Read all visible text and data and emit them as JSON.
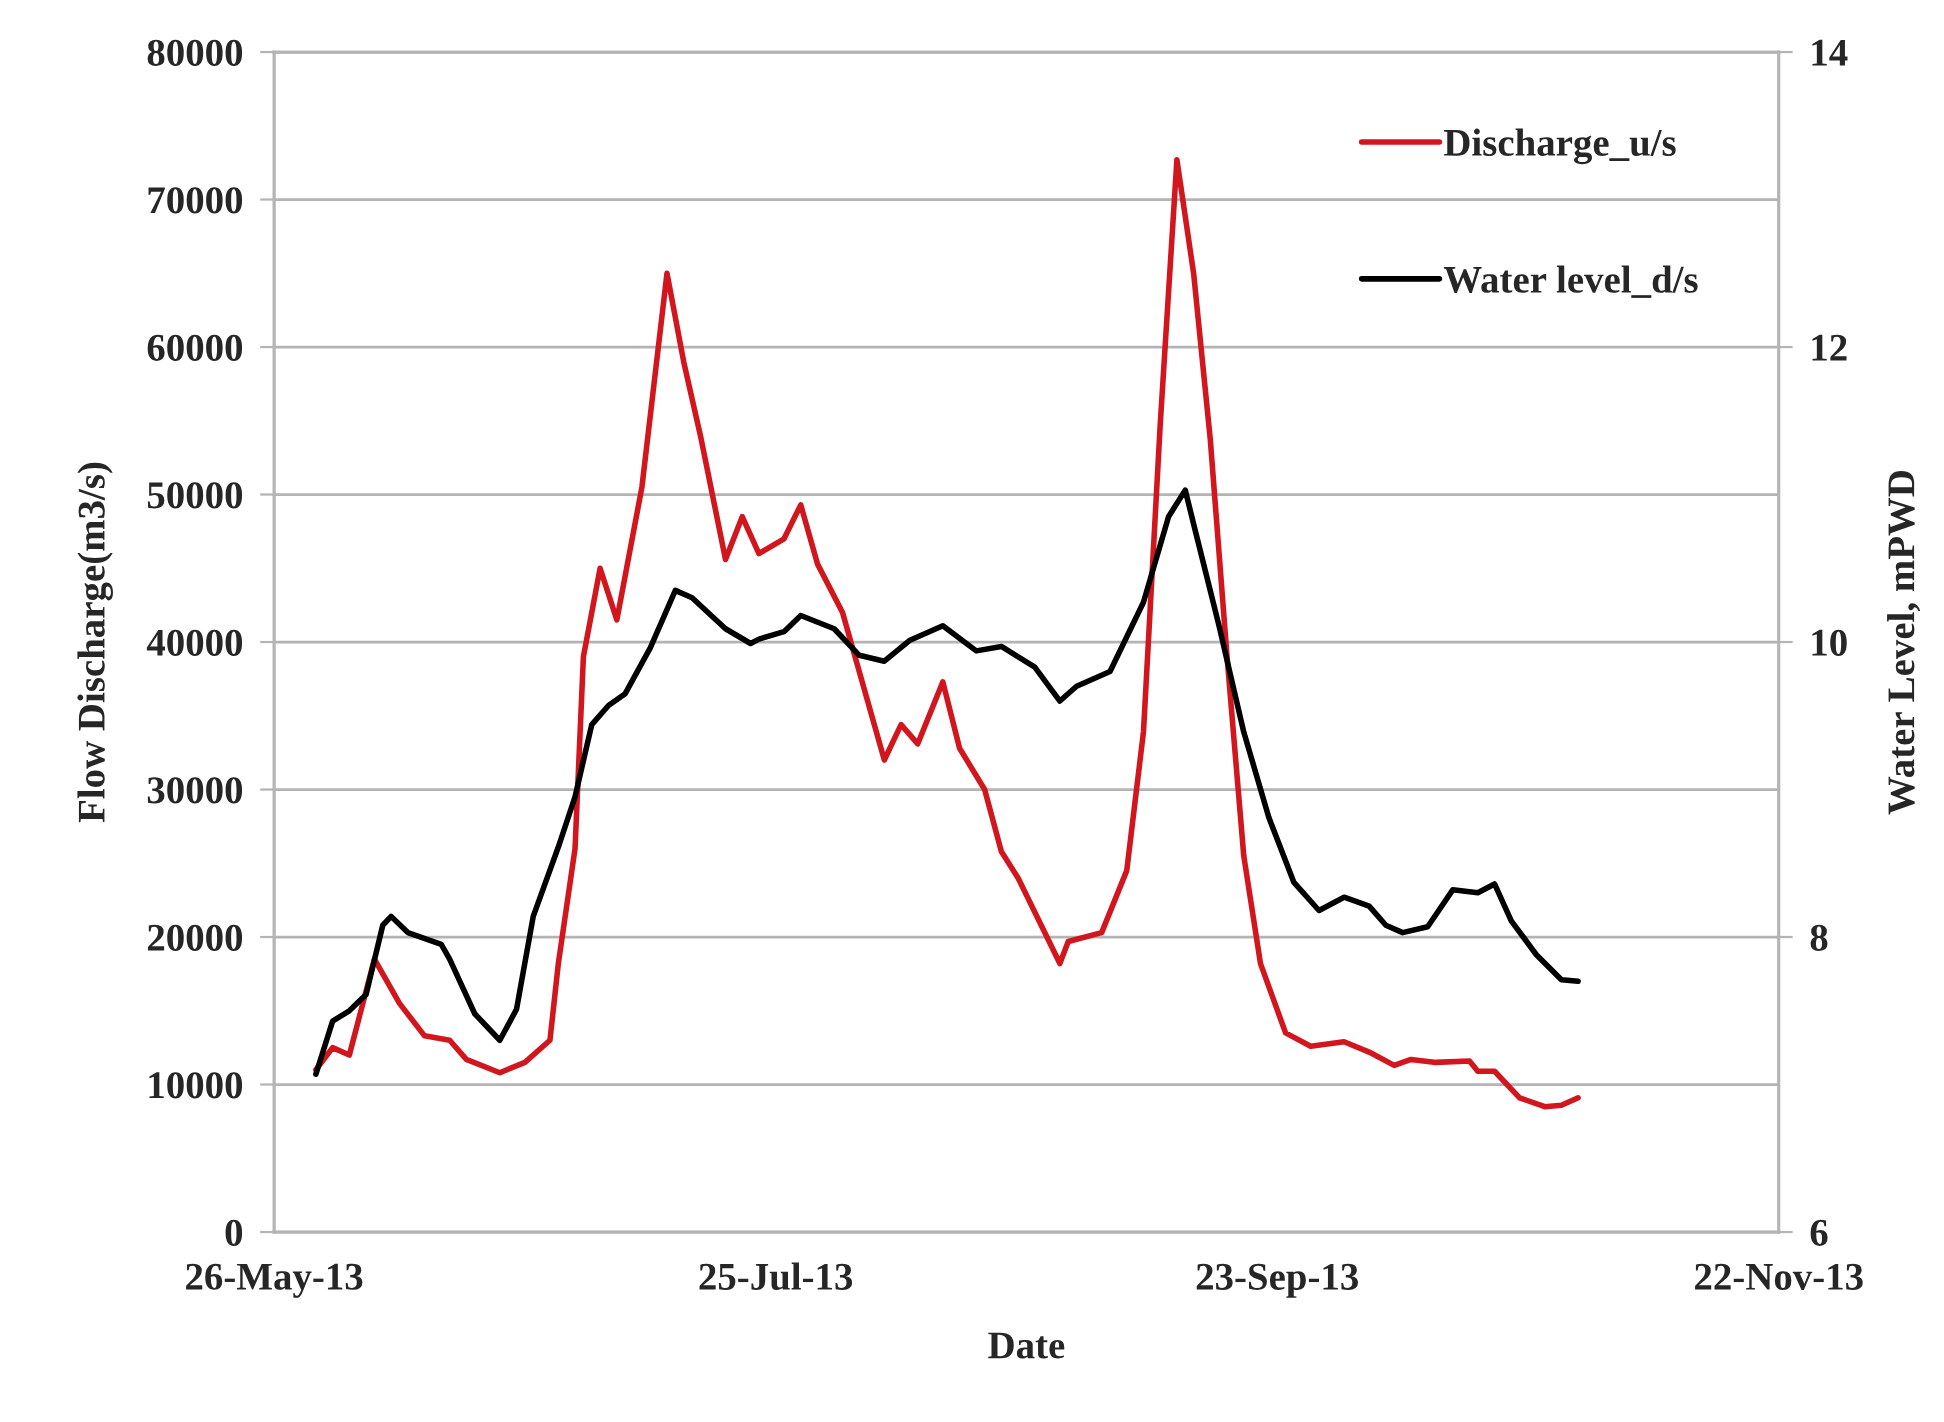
{
  "chart_data": {
    "type": "line",
    "xlabel": "Date",
    "ylabel": "Flow Discharge(m3/s)",
    "y2label": "Water Level, mPWD",
    "xlim": [
      "2013-05-26",
      "2013-11-22"
    ],
    "xticks": [
      {
        "value": "2013-05-26",
        "label": "26-May-13"
      },
      {
        "value": "2013-07-25",
        "label": "25-Jul-13"
      },
      {
        "value": "2013-09-23",
        "label": "23-Sep-13"
      },
      {
        "value": "2013-11-22",
        "label": "22-Nov-13"
      }
    ],
    "ylim": [
      0,
      80000
    ],
    "yticks": [
      0,
      10000,
      20000,
      30000,
      40000,
      50000,
      60000,
      70000,
      80000
    ],
    "y2lim": [
      6,
      14
    ],
    "y2ticks": [
      6,
      8,
      10,
      12,
      14
    ],
    "grid": "y",
    "legend": "top right",
    "series": [
      {
        "name": "Discharge_u/s",
        "color": "#d2161e",
        "x": [
          "2013-05-31",
          "2013-06-02",
          "2013-06-04",
          "2013-06-07",
          "2013-06-10",
          "2013-06-13",
          "2013-06-16",
          "2013-06-18",
          "2013-06-22",
          "2013-06-25",
          "2013-06-28",
          "2013-06-29",
          "2013-07-01",
          "2013-07-02",
          "2013-07-04",
          "2013-07-06",
          "2013-07-09",
          "2013-07-12",
          "2013-07-14",
          "2013-07-16",
          "2013-07-19",
          "2013-07-21",
          "2013-07-23",
          "2013-07-26",
          "2013-07-28",
          "2013-07-30",
          "2013-08-02",
          "2013-08-04",
          "2013-08-07",
          "2013-08-09",
          "2013-08-11",
          "2013-08-14",
          "2013-08-16",
          "2013-08-19",
          "2013-08-21",
          "2013-08-23",
          "2013-08-28",
          "2013-08-29",
          "2013-09-02",
          "2013-09-05",
          "2013-09-07",
          "2013-09-09",
          "2013-09-11",
          "2013-09-13",
          "2013-09-15",
          "2013-09-17",
          "2013-09-19",
          "2013-09-21",
          "2013-09-24",
          "2013-09-27",
          "2013-10-01",
          "2013-10-04",
          "2013-10-07",
          "2013-10-09",
          "2013-10-12",
          "2013-10-16",
          "2013-10-17",
          "2013-10-19",
          "2013-10-22",
          "2013-10-25",
          "2013-10-27",
          "2013-10-29"
        ],
        "values": [
          11000,
          12500,
          12000,
          18500,
          15500,
          13300,
          13000,
          11700,
          10800,
          11500,
          13000,
          18200,
          26000,
          39000,
          45000,
          41500,
          50500,
          65000,
          59000,
          54000,
          45600,
          48500,
          46000,
          47000,
          49300,
          45300,
          42000,
          38000,
          32000,
          34400,
          33100,
          37300,
          32800,
          30000,
          25800,
          24000,
          18200,
          19700,
          20300,
          24500,
          33900,
          54700,
          72700,
          65000,
          53700,
          39000,
          25500,
          18200,
          13500,
          12600,
          12900,
          12200,
          11300,
          11700,
          11500,
          11600,
          10900,
          10900,
          9100,
          8500,
          8600,
          9100
        ]
      },
      {
        "name": "Water level_d/s",
        "color": "#000000",
        "axis": "y2",
        "x": [
          "2013-05-31",
          "2013-06-02",
          "2013-06-04",
          "2013-06-06",
          "2013-06-08",
          "2013-06-09",
          "2013-06-11",
          "2013-06-15",
          "2013-06-16",
          "2013-06-19",
          "2013-06-22",
          "2013-06-24",
          "2013-06-26",
          "2013-06-29",
          "2013-07-01",
          "2013-07-03",
          "2013-07-05",
          "2013-07-07",
          "2013-07-10",
          "2013-07-13",
          "2013-07-15",
          "2013-07-19",
          "2013-07-22",
          "2013-07-23",
          "2013-07-26",
          "2013-07-28",
          "2013-08-01",
          "2013-08-04",
          "2013-08-07",
          "2013-08-10",
          "2013-08-14",
          "2013-08-18",
          "2013-08-21",
          "2013-08-25",
          "2013-08-28",
          "2013-08-30",
          "2013-09-03",
          "2013-09-07",
          "2013-09-10",
          "2013-09-12",
          "2013-09-13",
          "2013-09-16",
          "2013-09-19",
          "2013-09-22",
          "2013-09-25",
          "2013-09-28",
          "2013-10-01",
          "2013-10-04",
          "2013-10-06",
          "2013-10-08",
          "2013-10-11",
          "2013-10-14",
          "2013-10-17",
          "2013-10-19",
          "2013-10-21",
          "2013-10-24",
          "2013-10-27",
          "2013-10-29"
        ],
        "values": [
          7.07,
          7.43,
          7.5,
          7.61,
          8.08,
          8.14,
          8.03,
          7.95,
          7.85,
          7.48,
          7.3,
          7.51,
          8.14,
          8.61,
          8.95,
          9.44,
          9.57,
          9.65,
          9.96,
          10.35,
          10.3,
          10.09,
          9.99,
          10.02,
          10.07,
          10.18,
          10.09,
          9.91,
          9.87,
          10.01,
          10.11,
          9.94,
          9.97,
          9.83,
          9.6,
          9.7,
          9.8,
          10.27,
          10.85,
          11.03,
          10.8,
          10.12,
          9.39,
          8.81,
          8.37,
          8.18,
          8.27,
          8.21,
          8.08,
          8.03,
          8.07,
          8.32,
          8.3,
          8.36,
          8.11,
          7.88,
          7.71,
          7.7
        ]
      }
    ]
  }
}
